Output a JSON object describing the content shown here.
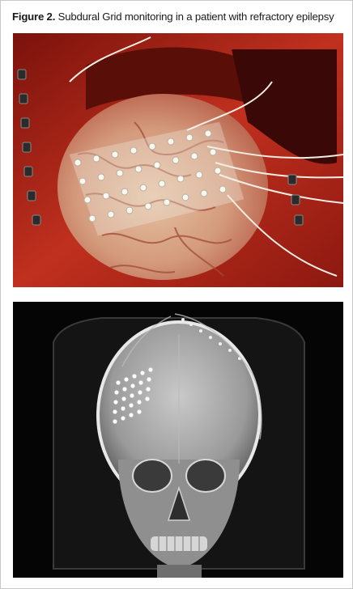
{
  "caption": {
    "label": "Figure 2.",
    "text": "Subdural Grid monitoring in a patient with refractory epilepsy"
  },
  "panels": [
    {
      "id": "intraoperative-photo",
      "alt": "Subdural electrode grid placed on exposed cortex"
    },
    {
      "id": "skull-xray",
      "alt": "Frontal skull radiograph showing implanted subdural grid"
    }
  ],
  "colors": {
    "tissue": "#b8281a",
    "brain": "#d9a98a",
    "grid": "#f2efe6",
    "xray_bg": "#050505",
    "bone": "#d8d8d8"
  }
}
